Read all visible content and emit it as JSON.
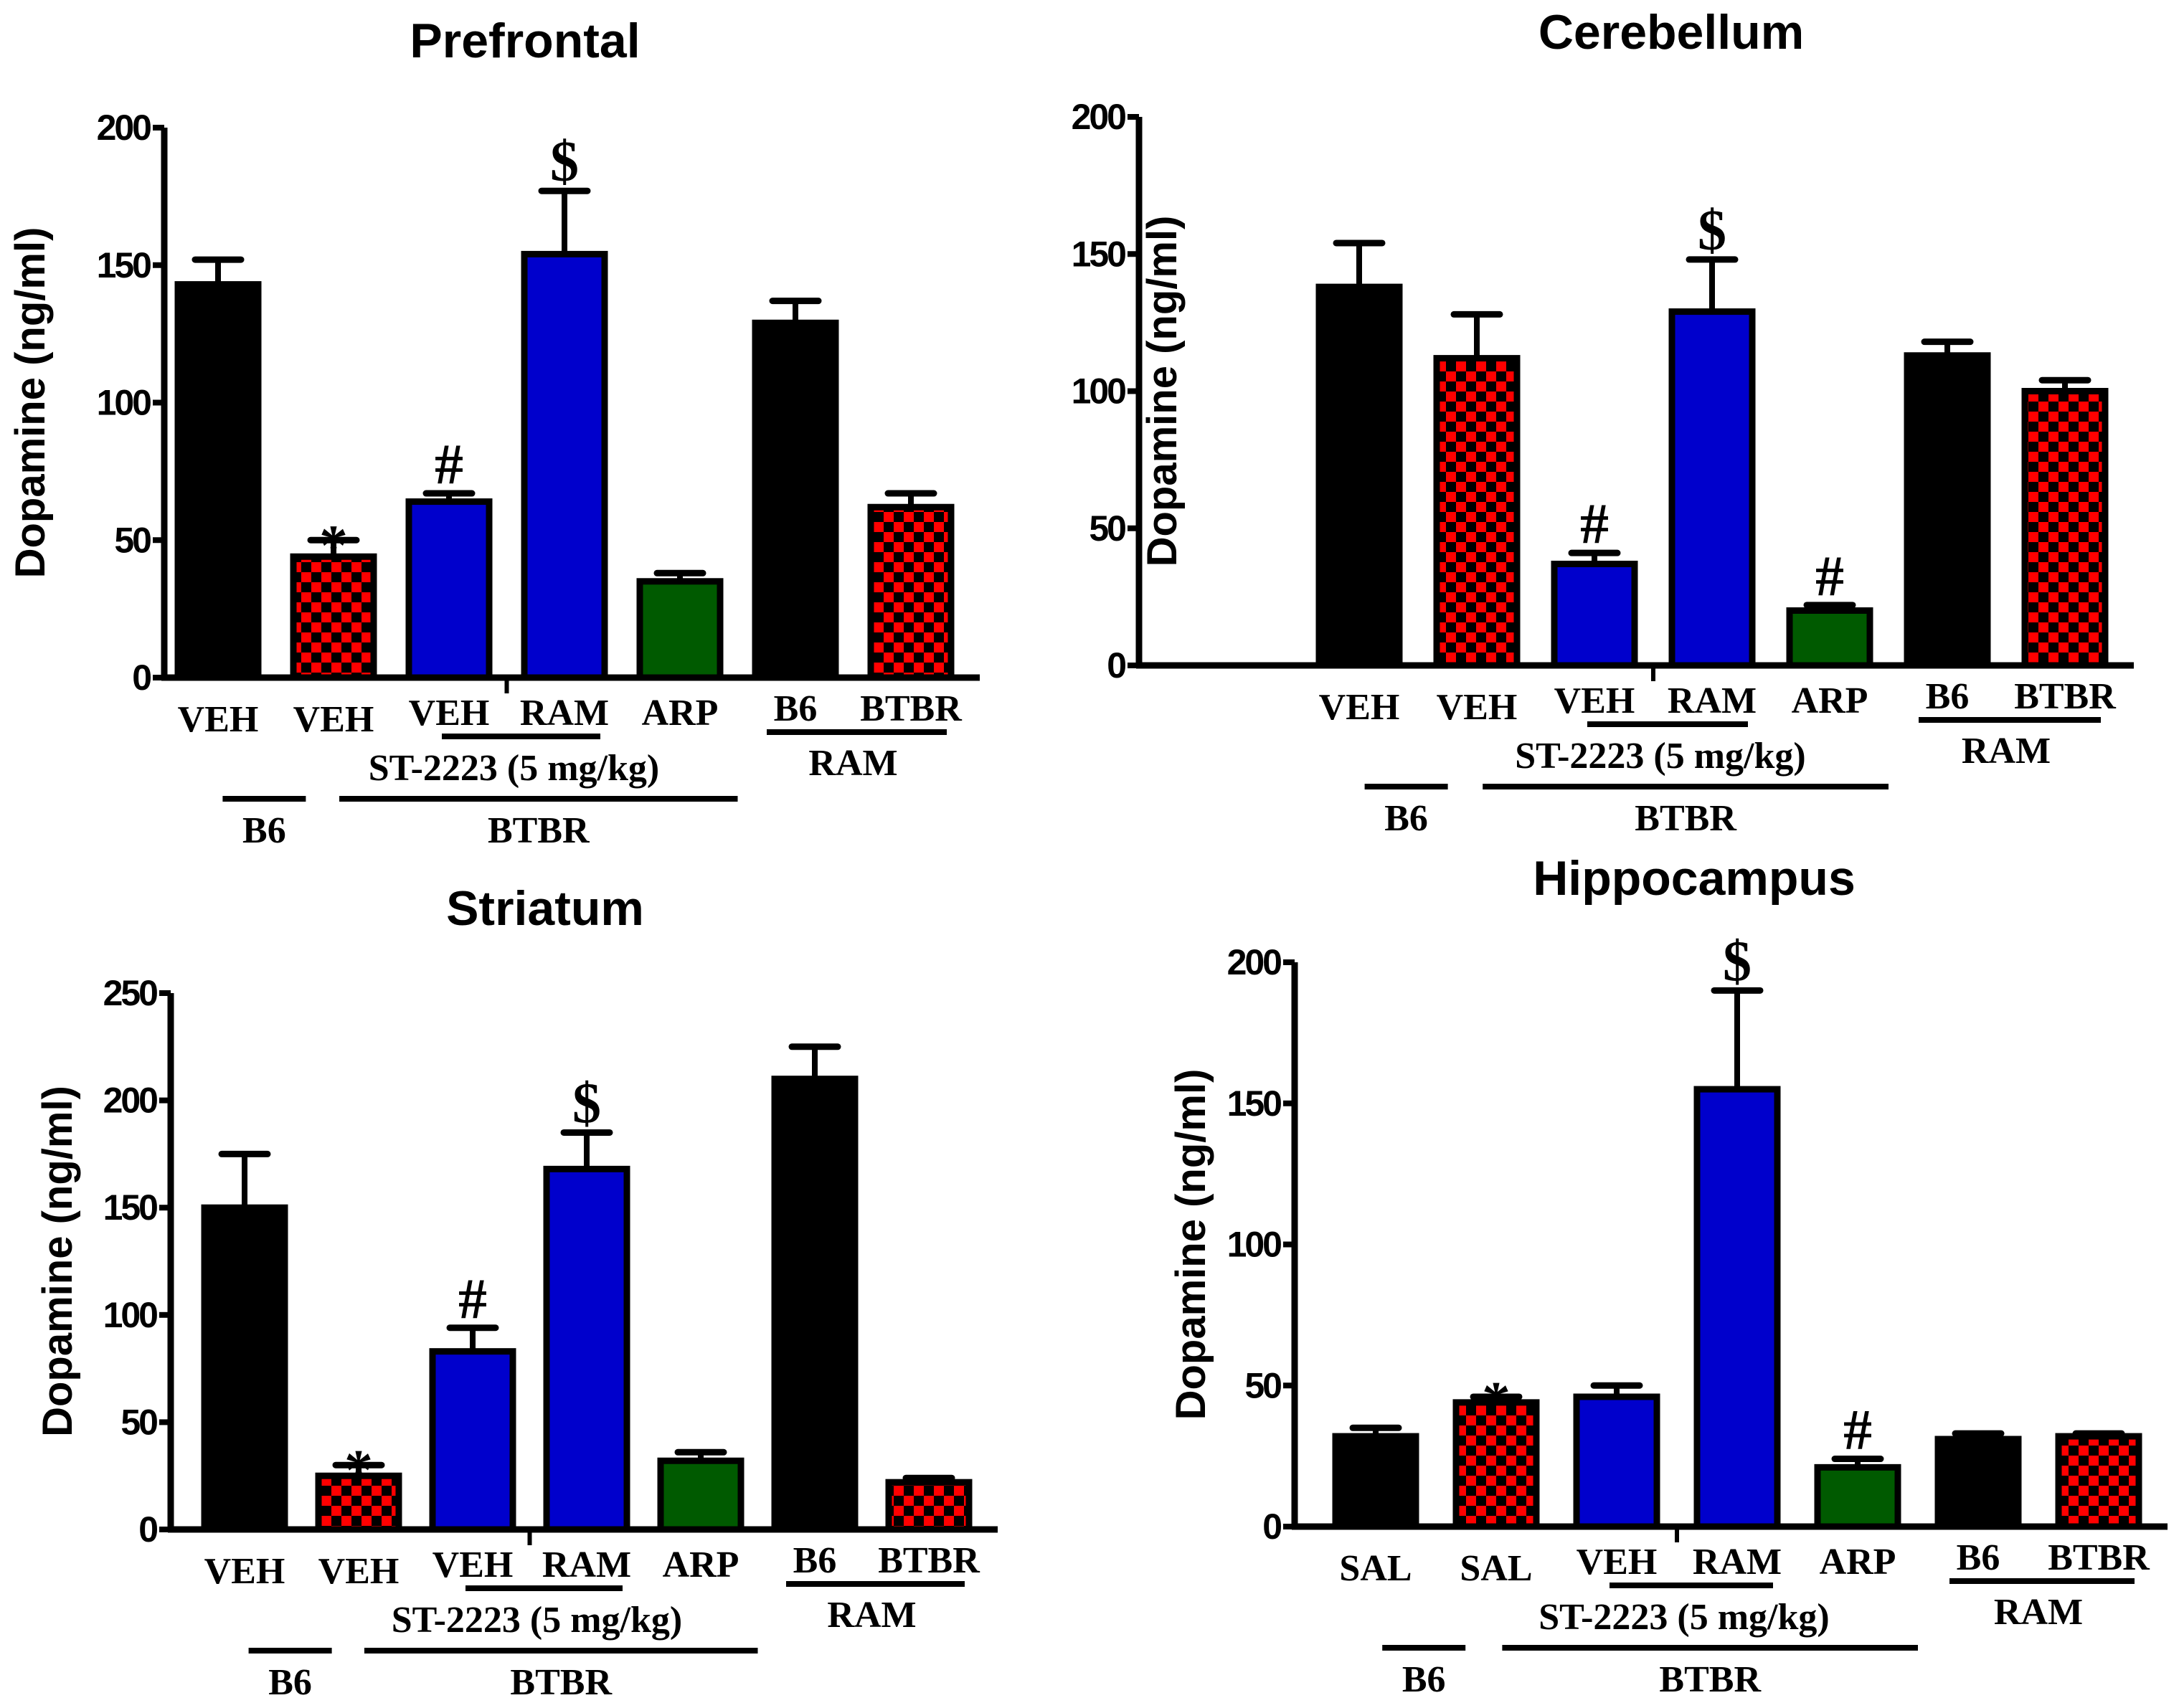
{
  "colors": {
    "black": "#000000",
    "red": "#ff0000",
    "blue": "#0000cc",
    "green": "#005a00"
  },
  "chart_data": [
    {
      "type": "bar",
      "title": "Prefrontal",
      "ylabel": "Dopamine (ng/ml)",
      "ylim": [
        0,
        200
      ],
      "yticks": [
        0,
        50,
        100,
        150,
        200
      ],
      "categories": [
        "VEH",
        "VEH",
        "VEH",
        "RAM",
        "ARP",
        "B6",
        "BTBR"
      ],
      "values": [
        143,
        44,
        64,
        154,
        35,
        129,
        62
      ],
      "errors": [
        9,
        6,
        3,
        23,
        3,
        8,
        5
      ],
      "fills": [
        "black",
        "red",
        "blue",
        "blue",
        "green",
        "black",
        "red"
      ],
      "annotations": [
        "",
        "*",
        "#",
        "$",
        "",
        "",
        ""
      ],
      "groups": {
        "treatment": "ST-2223 (5 mg/kg)",
        "ram": "RAM",
        "b6": "B6",
        "btbr": "BTBR"
      }
    },
    {
      "type": "bar",
      "title": "Cerebellum",
      "ylabel": "Dopamine (ng/ml)",
      "ylim": [
        0,
        200
      ],
      "yticks": [
        0,
        50,
        100,
        150,
        200
      ],
      "categories": [
        "VEH",
        "VEH",
        "VEH",
        "RAM",
        "ARP",
        "B6",
        "BTBR"
      ],
      "values": [
        138,
        112,
        37,
        129,
        20,
        113,
        100
      ],
      "errors": [
        16,
        16,
        4,
        19,
        2,
        5,
        4
      ],
      "fills": [
        "black",
        "red",
        "blue",
        "blue",
        "green",
        "black",
        "red"
      ],
      "annotations": [
        "",
        "",
        "#",
        "$",
        "#",
        "",
        ""
      ],
      "groups": {
        "treatment": "ST-2223 (5 mg/kg)",
        "ram": "RAM",
        "b6": "B6",
        "btbr": "BTBR"
      }
    },
    {
      "type": "bar",
      "title": "Striatum",
      "ylabel": "Dopamine (ng/ml)",
      "ylim": [
        0,
        250
      ],
      "yticks": [
        0,
        50,
        100,
        150,
        200,
        250
      ],
      "categories": [
        "VEH",
        "VEH",
        "VEH",
        "RAM",
        "ARP",
        "B6",
        "BTBR"
      ],
      "values": [
        150,
        25,
        83,
        168,
        32,
        210,
        22
      ],
      "errors": [
        25,
        5,
        11,
        17,
        4,
        15,
        2
      ],
      "fills": [
        "black",
        "red",
        "blue",
        "blue",
        "green",
        "black",
        "red"
      ],
      "annotations": [
        "",
        "*",
        "#",
        "$",
        "",
        "",
        ""
      ],
      "groups": {
        "treatment": "ST-2223 (5 mg/kg)",
        "ram": "RAM",
        "b6": "B6",
        "btbr": "BTBR"
      }
    },
    {
      "type": "bar",
      "title": "Hippocampus",
      "ylabel": "Dopamine (ng/ml)",
      "ylim": [
        0,
        200
      ],
      "yticks": [
        0,
        50,
        100,
        150,
        200
      ],
      "categories": [
        "SAL",
        "SAL",
        "VEH",
        "RAM",
        "ARP",
        "B6",
        "BTBR"
      ],
      "values": [
        32,
        44,
        46,
        155,
        21,
        31,
        32
      ],
      "errors": [
        3,
        2,
        4,
        35,
        3,
        2,
        1
      ],
      "fills": [
        "black",
        "red",
        "blue",
        "blue",
        "green",
        "black",
        "red"
      ],
      "annotations": [
        "",
        "*",
        "",
        "$",
        "#",
        "",
        ""
      ],
      "groups": {
        "treatment": "ST-2223 (5 mg/kg)",
        "ram": "RAM",
        "b6": "B6",
        "btbr": "BTBR"
      }
    }
  ]
}
